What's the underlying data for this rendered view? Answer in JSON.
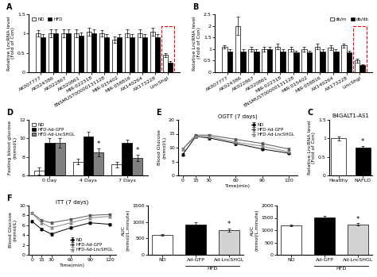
{
  "chart_data": [
    {
      "type": "bar",
      "title": "A",
      "ylabel": "Relative LncRNA level\n(Fold of Con)",
      "categories": [
        "AK007777",
        "AK024386",
        "AK022867",
        "AK020861",
        "MIR-022318",
        "ENSMUST00000131128",
        "MIR-015402",
        "MIR-058816",
        "AX140264",
        "AX173228",
        "LincShgl"
      ],
      "series": [
        {
          "name": "ND",
          "color": "white",
          "values": [
            1.0,
            1.0,
            1.0,
            1.0,
            1.05,
            1.0,
            0.85,
            1.0,
            1.0,
            1.05,
            0.45
          ],
          "errors": [
            0.08,
            0.1,
            0.1,
            0.1,
            0.1,
            0.08,
            0.08,
            0.1,
            0.1,
            0.1,
            0.05
          ]
        },
        {
          "name": "HFD",
          "color": "black",
          "values": [
            0.9,
            1.0,
            1.0,
            0.95,
            1.0,
            0.9,
            0.9,
            0.9,
            0.9,
            0.9,
            0.25
          ],
          "errors": [
            0.08,
            0.1,
            0.1,
            0.08,
            0.1,
            0.08,
            0.08,
            0.08,
            0.08,
            0.08,
            0.04
          ]
        }
      ],
      "ylim": [
        0.0,
        1.5
      ],
      "yticks": [
        0,
        0.5,
        1,
        1.5
      ],
      "legend": "upper left"
    },
    {
      "type": "bar",
      "title": "B",
      "ylabel": "Relative LncRNA level\n(Fold of Con)",
      "categories": [
        "AK007777",
        "AK024386",
        "AK022867",
        "AK020861",
        "MIR-022318",
        "ENSMUST00000131128",
        "MIR-015402",
        "MIR-058816",
        "AX140264",
        "AX173228",
        "LincShgl"
      ],
      "series": [
        {
          "name": "db/m",
          "color": "white",
          "values": [
            1.1,
            2.0,
            1.0,
            1.0,
            1.1,
            1.0,
            1.0,
            1.1,
            1.05,
            1.15,
            0.5
          ],
          "errors": [
            0.08,
            0.4,
            0.1,
            0.1,
            0.12,
            0.1,
            0.1,
            0.12,
            0.1,
            0.08,
            0.08
          ]
        },
        {
          "name": "db/db",
          "color": "black",
          "values": [
            0.9,
            0.9,
            0.9,
            1.0,
            0.9,
            0.85,
            0.85,
            0.9,
            0.9,
            0.85,
            0.3
          ],
          "errors": [
            0.08,
            0.1,
            0.08,
            0.1,
            0.08,
            0.08,
            0.08,
            0.08,
            0.08,
            0.08,
            0.05
          ]
        }
      ],
      "ylim": [
        0.0,
        2.5
      ],
      "yticks": [
        0,
        0.5,
        1,
        1.5,
        2,
        2.5
      ],
      "legend": "upper right"
    },
    {
      "type": "bar",
      "title": "C",
      "subtitle": "B4GALT1-AS1",
      "ylabel": "Relative LncRNA level\n(Fold of Con)",
      "categories": [
        "Healthy",
        "NAFLD"
      ],
      "values": [
        1.0,
        0.75
      ],
      "errors": [
        0.05,
        0.04
      ],
      "colors": [
        "white",
        "black"
      ],
      "ylim": [
        0.0,
        1.5
      ],
      "yticks": [
        0,
        0.5,
        1,
        1.5
      ],
      "annotations": [
        {
          "text": "*",
          "category": "NAFLD"
        }
      ]
    },
    {
      "type": "bar",
      "title": "D",
      "ylabel": "Fasting blood glucose\n(mmol/L)",
      "categories": [
        "0 Day",
        "4 Days",
        "7 Days"
      ],
      "series": [
        {
          "name": "ND",
          "color": "white",
          "values": [
            6.5,
            7.5,
            7.2
          ],
          "errors": [
            0.4,
            0.3,
            0.3
          ]
        },
        {
          "name": "HFD-Ad-GFP",
          "color": "black",
          "values": [
            9.5,
            10.2,
            9.5
          ],
          "errors": [
            0.5,
            0.5,
            0.4
          ]
        },
        {
          "name": "HFD-Ad-LncSHGL",
          "color": "gray",
          "values": [
            9.5,
            8.5,
            7.9
          ],
          "errors": [
            0.5,
            0.4,
            0.35
          ]
        }
      ],
      "ylim": [
        6,
        12
      ],
      "yticks": [
        6,
        8,
        10,
        12
      ],
      "legend": "upper left",
      "annotations": [
        {
          "text": "*",
          "category": "4 Days",
          "series": "HFD-Ad-LncSHGL"
        },
        {
          "text": "*",
          "category": "7 Days",
          "series": "HFD-Ad-LncSHGL"
        }
      ]
    },
    {
      "type": "line",
      "title": "E",
      "subtitle": "OGTT (7 days)",
      "ylabel": "Blood Glucose\n(mmol/L)",
      "xlabel": "Time(min)",
      "x": [
        0,
        15,
        30,
        60,
        90,
        120
      ],
      "series": [
        {
          "name": "ND",
          "color": "black",
          "marker": "circle",
          "line_style": "solid",
          "values": [
            7.5,
            14.0,
            13.5,
            11.5,
            9.5,
            8.0
          ],
          "errors": [
            0.4,
            0.5,
            0.5,
            0.5,
            0.4,
            0.4
          ]
        },
        {
          "name": "HFD-Ad-GFP",
          "color": "#555555",
          "marker": "square",
          "line_style": "solid",
          "values": [
            9.5,
            14.5,
            14.5,
            13.0,
            11.5,
            9.5
          ],
          "errors": [
            0.4,
            0.5,
            0.5,
            0.5,
            0.4,
            0.4
          ]
        },
        {
          "name": "HFD-Ad-LncSHGL",
          "color": "#888888",
          "marker": "triangle",
          "line_style": "solid",
          "values": [
            9.5,
            14.0,
            14.0,
            12.0,
            10.5,
            8.5
          ],
          "errors": [
            0.4,
            0.5,
            0.5,
            0.5,
            0.4,
            0.4
          ]
        }
      ],
      "xlim": [
        -5,
        130
      ],
      "xticks": [
        0,
        15,
        30,
        60,
        90,
        120
      ],
      "ylim": [
        0,
        20
      ],
      "yticks": [
        0,
        5,
        10,
        15,
        20
      ],
      "legend": "upper right"
    },
    {
      "type": "line",
      "title": "F",
      "subtitle": "ITT (7 days)",
      "ylabel": "Blood Glucose\n(mmol/L)",
      "xlabel": "Time(min)",
      "x": [
        0,
        15,
        30,
        60,
        90,
        120
      ],
      "series": [
        {
          "name": "ND",
          "color": "black",
          "marker": "circle",
          "line_style": "solid",
          "values": [
            6.8,
            5.2,
            4.2,
            5.5,
            6.5,
            6.2
          ],
          "errors": [
            0.25,
            0.25,
            0.25,
            0.25,
            0.25,
            0.25
          ]
        },
        {
          "name": "HFD-Ad-GFP",
          "color": "#555555",
          "marker": "square",
          "line_style": "solid",
          "values": [
            8.5,
            7.0,
            6.5,
            7.2,
            8.0,
            8.2
          ],
          "errors": [
            0.25,
            0.25,
            0.25,
            0.25,
            0.25,
            0.25
          ]
        },
        {
          "name": "HFD-Ad-LncSHGL",
          "color": "#888888",
          "marker": "triangle",
          "line_style": "solid",
          "values": [
            8.5,
            6.5,
            5.5,
            6.5,
            7.5,
            7.8
          ],
          "errors": [
            0.25,
            0.25,
            0.25,
            0.25,
            0.25,
            0.25
          ]
        }
      ],
      "xlim": [
        -5,
        130
      ],
      "xticks": [
        0,
        15,
        30,
        60,
        90,
        120
      ],
      "ylim": [
        0,
        10
      ],
      "yticks": [
        0,
        2,
        4,
        6,
        8,
        10
      ],
      "legend": "lower right"
    },
    {
      "type": "bar",
      "ylabel": "AUC\n(mmol/L.minute)",
      "categories": [
        "ND",
        "Ad-GFP",
        "Ad-LncSHGL"
      ],
      "values": [
        600,
        920,
        760
      ],
      "errors": [
        30,
        60,
        50
      ],
      "colors": [
        "white",
        "black",
        "lightgray"
      ],
      "ylim": [
        0,
        1500
      ],
      "yticks": [
        0,
        500,
        1000,
        1500
      ],
      "annotations": [
        {
          "text": "*",
          "category": "Ad-LncSHGL"
        },
        {
          "text": "HFD",
          "categories": [
            "Ad-GFP",
            "Ad-LncSHGL"
          ]
        }
      ]
    },
    {
      "type": "bar",
      "ylabel": "AUC\n(mmol/L.minute)",
      "categories": [
        "ND",
        "Ad-GFP",
        "Ad-LncSHGL"
      ],
      "values": [
        1200,
        1520,
        1230
      ],
      "errors": [
        40,
        60,
        50
      ],
      "colors": [
        "white",
        "black",
        "lightgray"
      ],
      "ylim": [
        0,
        2000
      ],
      "yticks": [
        0,
        500,
        1000,
        1500,
        2000
      ],
      "annotations": [
        {
          "text": "*",
          "category": "Ad-LncSHGL"
        },
        {
          "text": "HFD",
          "categories": [
            "Ad-GFP",
            "Ad-LncSHGL"
          ]
        }
      ]
    }
  ]
}
